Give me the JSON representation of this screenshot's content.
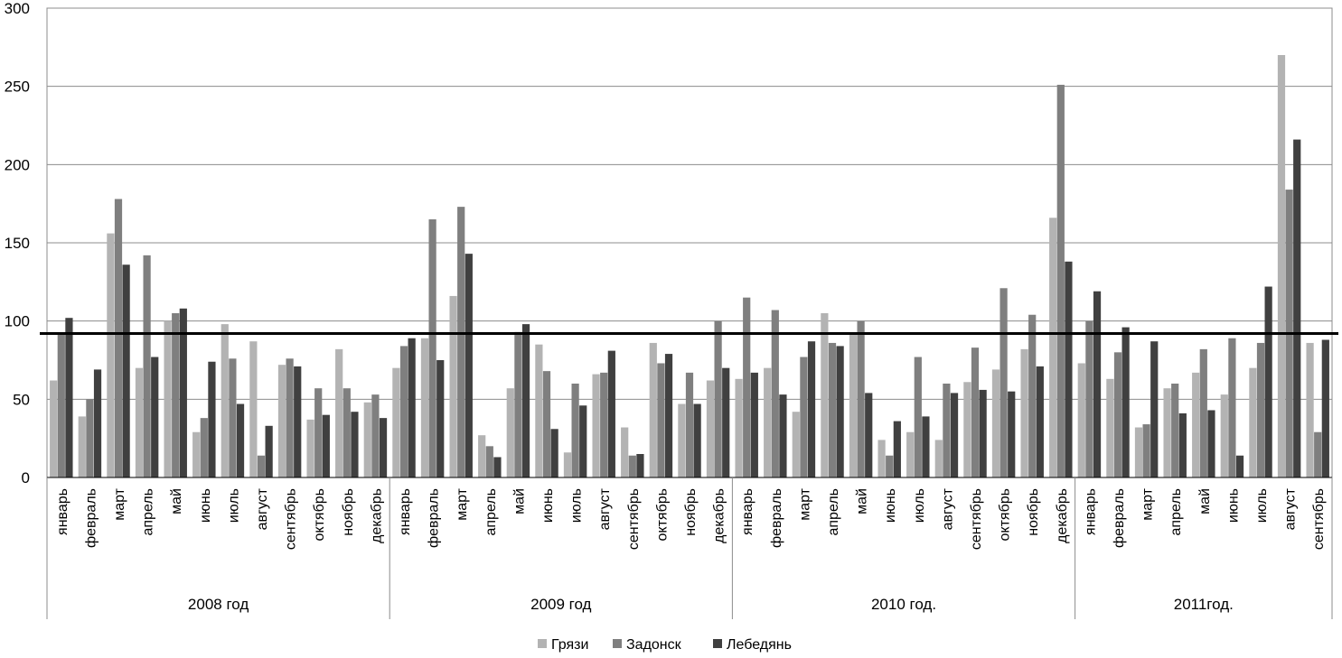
{
  "chart_data": {
    "type": "bar",
    "ylim": [
      0,
      300
    ],
    "y_ticks": [
      0,
      50,
      100,
      150,
      200,
      250,
      300
    ],
    "grid": true,
    "legend_position": "bottom",
    "reference_line": 92,
    "groups": [
      {
        "label": "2008 год",
        "months": [
          "январь",
          "февраль",
          "март",
          "апрель",
          "май",
          "июнь",
          "июль",
          "август",
          "сентябрь",
          "октябрь",
          "ноябрь",
          "декабрь"
        ]
      },
      {
        "label": "2009 год",
        "months": [
          "январь",
          "февраль",
          "март",
          "апрель",
          "май",
          "июнь",
          "июль",
          "август",
          "сентябрь",
          "октябрь",
          "ноябрь",
          "декабрь"
        ]
      },
      {
        "label": "2010 год.",
        "months": [
          "январь",
          "февраль",
          "март",
          "апрель",
          "май",
          "июнь",
          "июль",
          "август",
          "сентябрь",
          "октябрь",
          "ноябрь",
          "декабрь"
        ]
      },
      {
        "label": "2011год.",
        "months": [
          "январь",
          "февраль",
          "март",
          "апрель",
          "май",
          "июнь",
          "июль",
          "август",
          "сентябрь"
        ]
      }
    ],
    "series": [
      {
        "name": "Грязи",
        "color": "#b3b3b3",
        "values": [
          62,
          39,
          156,
          70,
          100,
          29,
          98,
          87,
          72,
          37,
          82,
          48,
          70,
          89,
          116,
          27,
          57,
          85,
          16,
          66,
          32,
          86,
          47,
          62,
          63,
          70,
          42,
          105,
          92,
          24,
          29,
          24,
          61,
          69,
          82,
          166,
          73,
          63,
          32,
          57,
          67,
          53,
          70,
          270,
          86
        ]
      },
      {
        "name": "Задонск",
        "color": "#7f7f7f",
        "values": [
          92,
          50,
          178,
          142,
          105,
          38,
          76,
          14,
          76,
          57,
          57,
          53,
          84,
          165,
          173,
          20,
          93,
          68,
          60,
          67,
          14,
          73,
          67,
          100,
          115,
          107,
          77,
          86,
          100,
          14,
          77,
          60,
          83,
          121,
          104,
          251,
          100,
          80,
          34,
          60,
          82,
          89,
          86,
          184,
          29
        ]
      },
      {
        "name": "Лебедянь",
        "color": "#404040",
        "values": [
          102,
          69,
          136,
          77,
          108,
          74,
          47,
          33,
          71,
          40,
          42,
          38,
          89,
          75,
          143,
          13,
          98,
          31,
          46,
          81,
          15,
          79,
          47,
          70,
          67,
          53,
          87,
          84,
          54,
          36,
          39,
          54,
          56,
          55,
          71,
          138,
          119,
          96,
          87,
          41,
          43,
          14,
          122,
          216,
          88
        ]
      }
    ]
  }
}
